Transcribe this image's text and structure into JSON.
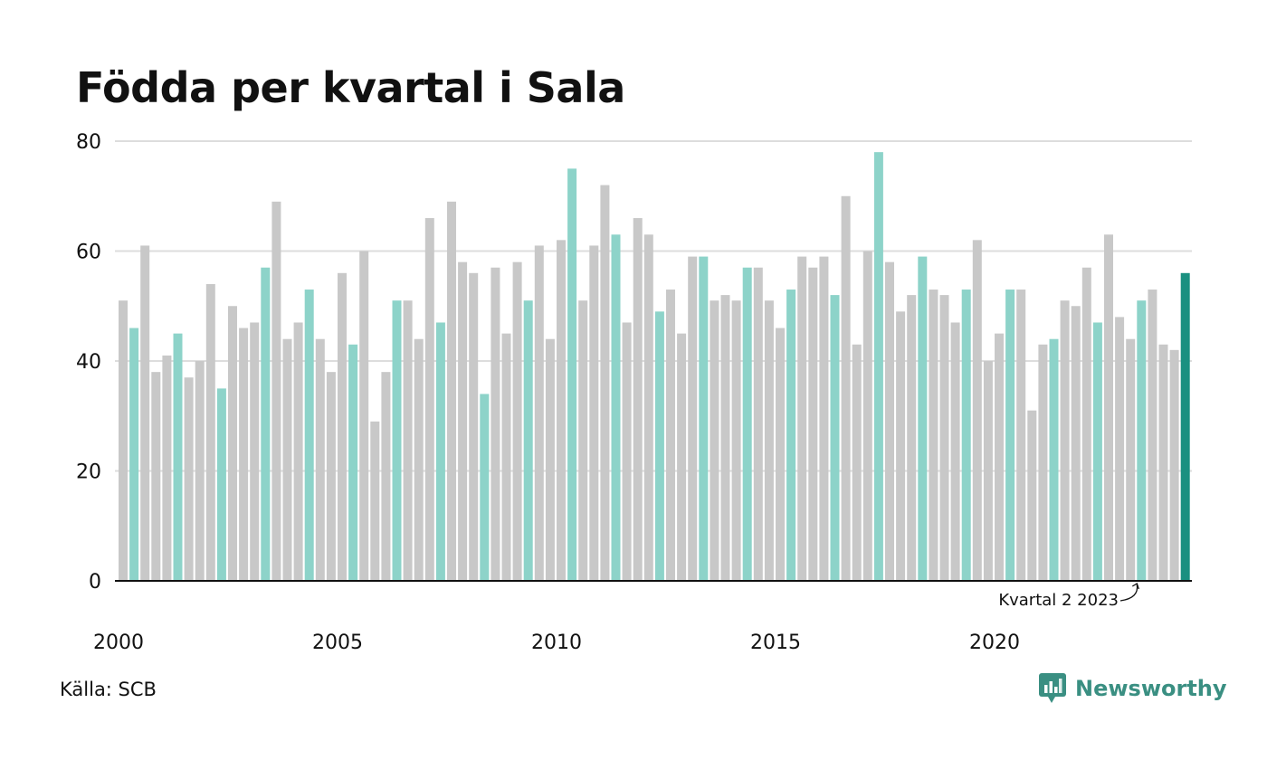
{
  "chart_data": {
    "type": "bar",
    "title": "Födda per kvartal i Sala",
    "xlabel": "",
    "ylabel": "",
    "ylim": [
      0,
      80
    ],
    "yticks": [
      0,
      20,
      40,
      60,
      80
    ],
    "xticks": [
      "2000",
      "2005",
      "2010",
      "2015",
      "2020"
    ],
    "start_year": 2000,
    "grid": true,
    "annotation": "Kvartal 2 2023",
    "values": [
      51,
      46,
      61,
      38,
      41,
      45,
      37,
      40,
      54,
      35,
      50,
      46,
      47,
      57,
      69,
      44,
      47,
      53,
      44,
      38,
      56,
      43,
      60,
      29,
      38,
      51,
      51,
      44,
      66,
      47,
      69,
      58,
      56,
      34,
      57,
      45,
      58,
      51,
      61,
      44,
      62,
      75,
      51,
      61,
      72,
      63,
      47,
      66,
      63,
      49,
      53,
      45,
      59,
      59,
      51,
      52,
      51,
      57,
      57,
      51,
      46,
      53,
      59,
      57,
      59,
      52,
      70,
      43,
      60,
      78,
      58,
      49,
      52,
      59,
      53,
      52,
      47,
      53,
      62,
      40,
      45,
      53,
      53,
      31,
      43,
      44,
      51,
      50,
      57,
      47,
      63,
      48,
      44,
      51,
      53,
      43,
      42,
      56
    ],
    "colors": {
      "default": "#c8c8c8",
      "highlight_quarter": "#8dd3c9",
      "latest": "#1a9080",
      "grid": "#dddddd",
      "axis": "#111111"
    }
  },
  "source": "Källa: SCB",
  "logo": {
    "text": "Newsworthy",
    "icon": "newsworthy-bar-chart-icon"
  }
}
